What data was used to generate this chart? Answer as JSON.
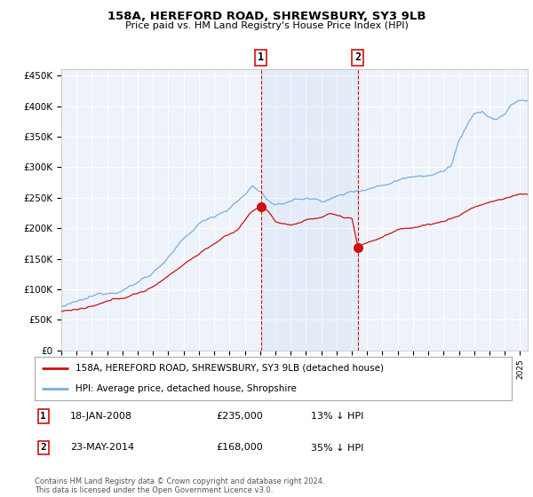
{
  "title": "158A, HEREFORD ROAD, SHREWSBURY, SY3 9LB",
  "subtitle": "Price paid vs. HM Land Registry's House Price Index (HPI)",
  "ylim": [
    0,
    460000
  ],
  "ytick_vals": [
    0,
    50000,
    100000,
    150000,
    200000,
    250000,
    300000,
    350000,
    400000,
    450000
  ],
  "ytick_labels": [
    "£0",
    "£50K",
    "£100K",
    "£150K",
    "£200K",
    "£250K",
    "£300K",
    "£350K",
    "£400K",
    "£450K"
  ],
  "xlim_start": 1995.0,
  "xlim_end": 2025.5,
  "background_color": "#ffffff",
  "plot_bg_color": "#eef2fa",
  "grid_color": "#ffffff",
  "hpi_color": "#7aaddb",
  "price_color": "#cc1111",
  "sale1_x": 2008.05,
  "sale1_y": 235000,
  "sale2_x": 2014.4,
  "sale2_y": 168000,
  "legend_line1": "158A, HEREFORD ROAD, SHREWSBURY, SY3 9LB (detached house)",
  "legend_line2": "HPI: Average price, detached house, Shropshire",
  "note1_label": "1",
  "note1_date": "18-JAN-2008",
  "note1_price": "£235,000",
  "note1_pct": "13% ↓ HPI",
  "note2_label": "2",
  "note2_date": "23-MAY-2014",
  "note2_price": "£168,000",
  "note2_pct": "35% ↓ HPI",
  "footer": "Contains HM Land Registry data © Crown copyright and database right 2024.\nThis data is licensed under the Open Government Licence v3.0."
}
